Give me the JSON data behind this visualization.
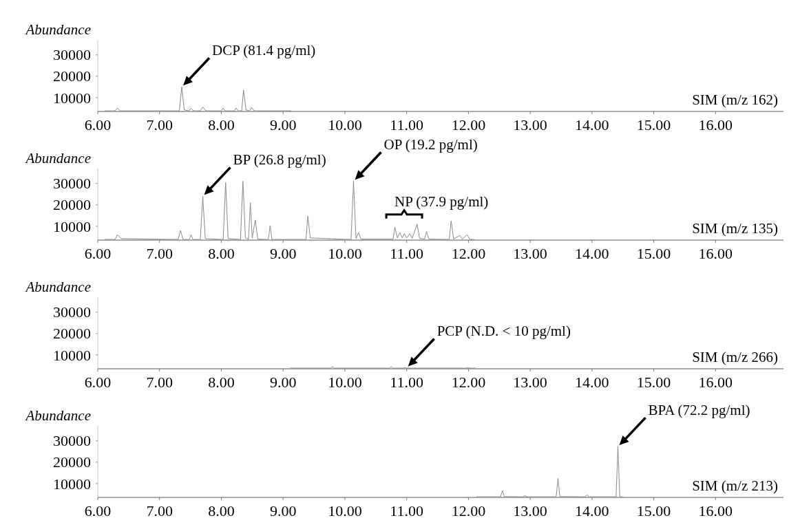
{
  "chart_data": [
    {
      "type": "line",
      "ylabel": "Abundance",
      "xlim": [
        6.0,
        17.1
      ],
      "xticks": [
        {
          "value": 6,
          "label": "6.00"
        },
        {
          "value": 7,
          "label": "7.00"
        },
        {
          "value": 8,
          "label": "8.00"
        },
        {
          "value": 9,
          "label": "9.00"
        },
        {
          "value": 10,
          "label": "10.00"
        },
        {
          "value": 11,
          "label": "11.00"
        },
        {
          "value": 12,
          "label": "12.00"
        },
        {
          "value": 13,
          "label": "13.00"
        },
        {
          "value": 14,
          "label": "14.00"
        },
        {
          "value": 15,
          "label": "15.00"
        },
        {
          "value": 16,
          "label": "16.00"
        }
      ],
      "ylim": [
        3500,
        37000
      ],
      "yticks": [
        10000,
        20000,
        30000
      ],
      "grid": false,
      "series": [
        {
          "color": "#8a8a8a",
          "x": [
            6.11,
            6.28,
            6.32,
            6.36,
            7.32,
            7.36,
            7.4,
            7.47,
            7.51,
            7.55,
            7.66,
            7.7,
            7.75,
            8.0,
            8.03,
            8.06,
            8.21,
            8.24,
            8.27,
            8.33,
            8.36,
            8.4,
            8.46,
            8.49,
            8.53,
            9.13
          ],
          "values": [
            3800,
            3800,
            5100,
            3800,
            3800,
            15000,
            4200,
            3800,
            4900,
            3800,
            3800,
            5600,
            3800,
            3800,
            5100,
            3800,
            3800,
            5100,
            3800,
            3800,
            13500,
            4200,
            3800,
            5400,
            3800,
            3800
          ]
        }
      ],
      "annotations": [
        {
          "text": "DCP (81.4 pg/ml)",
          "x": 7.36,
          "y": 15000
        },
        "SIM (m/z 162)"
      ]
    },
    {
      "type": "line",
      "ylabel": "Abundance",
      "xlim": [
        6.0,
        17.1
      ],
      "xticks": [
        {
          "value": 6,
          "label": "6.00"
        },
        {
          "value": 7,
          "label": "7.00"
        },
        {
          "value": 8,
          "label": "8.00"
        },
        {
          "value": 9,
          "label": "9.00"
        },
        {
          "value": 10,
          "label": "10.00"
        },
        {
          "value": 11,
          "label": "11.00"
        },
        {
          "value": 12,
          "label": "12.00"
        },
        {
          "value": 13,
          "label": "13.00"
        },
        {
          "value": 14,
          "label": "14.00"
        },
        {
          "value": 15,
          "label": "15.00"
        },
        {
          "value": 16,
          "label": "16.00"
        }
      ],
      "ylim": [
        3500,
        37000
      ],
      "yticks": [
        10000,
        20000,
        30000
      ],
      "grid": false,
      "series": [
        {
          "color": "#8a8a8a",
          "x": [
            6.11,
            6.28,
            6.32,
            6.38,
            7.3,
            7.34,
            7.38,
            7.48,
            7.51,
            7.54,
            7.66,
            7.7,
            7.74,
            8.03,
            8.07,
            8.11,
            8.31,
            8.35,
            8.39,
            8.44,
            8.47,
            8.5,
            8.55,
            8.59,
            8.76,
            8.79,
            8.82,
            9.37,
            9.4,
            9.44,
            10.1,
            10.14,
            10.18,
            10.22,
            10.26,
            10.78,
            10.81,
            10.85,
            10.89,
            10.93,
            10.96,
            11.0,
            11.05,
            11.09,
            11.17,
            11.21,
            11.29,
            11.32,
            11.36,
            11.69,
            11.72,
            11.76,
            11.86,
            11.9,
            11.98,
            12.02,
            12.1
          ],
          "values": [
            3800,
            3800,
            6000,
            4200,
            3800,
            8000,
            3800,
            3800,
            6000,
            3800,
            3800,
            24000,
            4200,
            3800,
            30400,
            4200,
            3800,
            31100,
            4500,
            4000,
            21000,
            4500,
            12900,
            4000,
            3800,
            10200,
            3800,
            3800,
            14700,
            4500,
            3800,
            31100,
            4200,
            7000,
            4000,
            4000,
            9500,
            4500,
            7000,
            4500,
            6500,
            4500,
            6500,
            4300,
            11000,
            4300,
            4000,
            7500,
            4000,
            3800,
            12500,
            4000,
            5700,
            4000,
            6000,
            3900,
            3800
          ]
        }
      ],
      "annotations": [
        {
          "text": "BP (26.8 pg/ml)",
          "x": 7.7,
          "y": 24000
        },
        {
          "text": "OP (19.2 pg/ml)",
          "x": 10.14,
          "y": 31100
        },
        {
          "text": "NP (37.9 pg/ml)",
          "x": 10.96,
          "y": 6500
        },
        "SIM (m/z 135)"
      ]
    },
    {
      "type": "line",
      "ylabel": "Abundance",
      "xlim": [
        6.0,
        17.1
      ],
      "xticks": [
        {
          "value": 6,
          "label": "6.00"
        },
        {
          "value": 7,
          "label": "7.00"
        },
        {
          "value": 8,
          "label": "8.00"
        },
        {
          "value": 9,
          "label": "9.00"
        },
        {
          "value": 10,
          "label": "10.00"
        },
        {
          "value": 11,
          "label": "11.00"
        },
        {
          "value": 12,
          "label": "12.00"
        },
        {
          "value": 13,
          "label": "13.00"
        },
        {
          "value": 14,
          "label": "14.00"
        },
        {
          "value": 15,
          "label": "15.00"
        },
        {
          "value": 16,
          "label": "16.00"
        }
      ],
      "ylim": [
        3500,
        37000
      ],
      "yticks": [
        10000,
        20000,
        30000
      ],
      "grid": false,
      "series": [
        {
          "color": "#8a8a8a",
          "x": [
            9.11,
            9.77,
            9.8,
            9.83,
            10.72,
            10.75,
            10.78,
            10.94,
            10.97,
            11.0,
            11.96,
            11.99,
            12.02,
            12.12
          ],
          "values": [
            3800,
            3800,
            4500,
            3800,
            3800,
            4500,
            3800,
            3800,
            4000,
            3800,
            3800,
            4000,
            3800,
            3800
          ]
        }
      ],
      "annotations": [
        {
          "text": "PCP (N.D. < 10 pg/ml)",
          "x": 11.0,
          "y": 4000
        },
        "SIM (m/z 266)"
      ]
    },
    {
      "type": "line",
      "ylabel": "Abundance",
      "xlim": [
        6.0,
        17.1
      ],
      "xticks": [
        {
          "value": 6,
          "label": "6.00"
        },
        {
          "value": 7,
          "label": "7.00"
        },
        {
          "value": 8,
          "label": "8.00"
        },
        {
          "value": 9,
          "label": "9.00"
        },
        {
          "value": 10,
          "label": "10.00"
        },
        {
          "value": 11,
          "label": "11.00"
        },
        {
          "value": 12,
          "label": "12.00"
        },
        {
          "value": 13,
          "label": "13.00"
        },
        {
          "value": 14,
          "label": "14.00"
        },
        {
          "value": 15,
          "label": "15.00"
        },
        {
          "value": 16,
          "label": "16.00"
        }
      ],
      "ylim": [
        3500,
        37000
      ],
      "yticks": [
        10000,
        20000,
        30000
      ],
      "grid": false,
      "series": [
        {
          "color": "#8a8a8a",
          "x": [
            12.13,
            12.52,
            12.55,
            12.58,
            12.88,
            12.91,
            12.95,
            13.42,
            13.45,
            13.48,
            13.89,
            13.92,
            13.95,
            14.39,
            14.42,
            14.45,
            14.5
          ],
          "values": [
            3800,
            3800,
            6700,
            3900,
            3800,
            4300,
            3800,
            3800,
            12400,
            3900,
            3800,
            4700,
            3800,
            3800,
            27300,
            3800,
            3800
          ]
        }
      ],
      "annotations": [
        {
          "text": "BPA (72.2 pg/ml)",
          "x": 14.42,
          "y": 27300
        },
        "SIM (m/z 213)"
      ]
    }
  ]
}
